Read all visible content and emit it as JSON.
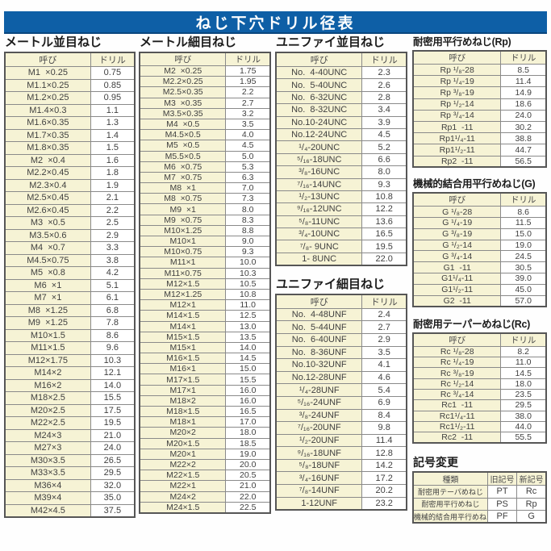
{
  "title": "ねじ下穴ドリル径表",
  "colors": {
    "header_blue": "#0e5fa6",
    "cell_cream": "#f6f3d5",
    "border_gray": "#8a8a8a",
    "text_gray": "#3f3f3f"
  },
  "tables": {
    "metric_coarse": {
      "title": "メートル並目ねじ",
      "headers": [
        "呼び",
        "ドリル"
      ],
      "rows": [
        [
          "M1  ×0.25",
          "0.75"
        ],
        [
          "M1.1×0.25",
          "0.85"
        ],
        [
          "M1.2×0.25",
          "0.95"
        ],
        [
          "M1.4×0.3",
          "1.1"
        ],
        [
          "M1.6×0.35",
          "1.3"
        ],
        [
          "M1.7×0.35",
          "1.4"
        ],
        [
          "M1.8×0.35",
          "1.5"
        ],
        [
          "M2  ×0.4",
          "1.6"
        ],
        [
          "M2.2×0.45",
          "1.8"
        ],
        [
          "M2.3×0.4",
          "1.9"
        ],
        [
          "M2.5×0.45",
          "2.1"
        ],
        [
          "M2.6×0.45",
          "2.2"
        ],
        [
          "M3  ×0.5",
          "2.5"
        ],
        [
          "M3.5×0.6",
          "2.9"
        ],
        [
          "M4  ×0.7",
          "3.3"
        ],
        [
          "M4.5×0.75",
          "3.8"
        ],
        [
          "M5  ×0.8",
          "4.2"
        ],
        [
          "M6  ×1",
          "5.1"
        ],
        [
          "M7  ×1",
          "6.1"
        ],
        [
          "M8  ×1.25",
          "6.8"
        ],
        [
          "M9  ×1.25",
          "7.8"
        ],
        [
          "M10×1.5",
          "8.6"
        ],
        [
          "M11×1.5",
          "9.6"
        ],
        [
          "M12×1.75",
          "10.3"
        ],
        [
          "M14×2",
          "12.1"
        ],
        [
          "M16×2",
          "14.0"
        ],
        [
          "M18×2.5",
          "15.5"
        ],
        [
          "M20×2.5",
          "17.5"
        ],
        [
          "M22×2.5",
          "19.5"
        ],
        [
          "M24×3",
          "21.0"
        ],
        [
          "M27×3",
          "24.0"
        ],
        [
          "M30×3.5",
          "26.5"
        ],
        [
          "M33×3.5",
          "29.5"
        ],
        [
          "M36×4",
          "32.0"
        ],
        [
          "M39×4",
          "35.0"
        ],
        [
          "M42×4.5",
          "37.5"
        ]
      ]
    },
    "metric_fine": {
      "title": "メートル細目ねじ",
      "headers": [
        "呼び",
        "ドリル"
      ],
      "rows": [
        [
          "M2  ×0.25",
          "1.75"
        ],
        [
          "M2.2×0.25",
          "1.95"
        ],
        [
          "M2.5×0.35",
          "2.2"
        ],
        [
          "M3  ×0.35",
          "2.7"
        ],
        [
          "M3.5×0.35",
          "3.2"
        ],
        [
          "M4  ×0.5",
          "3.5"
        ],
        [
          "M4.5×0.5",
          "4.0"
        ],
        [
          "M5  ×0.5",
          "4.5"
        ],
        [
          "M5.5×0.5",
          "5.0"
        ],
        [
          "M6  ×0.75",
          "5.3"
        ],
        [
          "M7  ×0.75",
          "6.3"
        ],
        [
          "M8  ×1",
          "7.0"
        ],
        [
          "M8  ×0.75",
          "7.3"
        ],
        [
          "M9  ×1",
          "8.0"
        ],
        [
          "M9  ×0.75",
          "8.3"
        ],
        [
          "M10×1.25",
          "8.8"
        ],
        [
          "M10×1",
          "9.0"
        ],
        [
          "M10×0.75",
          "9.3"
        ],
        [
          "M11×1",
          "10.0"
        ],
        [
          "M11×0.75",
          "10.3"
        ],
        [
          "M12×1.5",
          "10.5"
        ],
        [
          "M12×1.25",
          "10.8"
        ],
        [
          "M12×1",
          "11.0"
        ],
        [
          "M14×1.5",
          "12.5"
        ],
        [
          "M14×1",
          "13.0"
        ],
        [
          "M15×1.5",
          "13.5"
        ],
        [
          "M15×1",
          "14.0"
        ],
        [
          "M16×1.5",
          "14.5"
        ],
        [
          "M16×1",
          "15.0"
        ],
        [
          "M17×1.5",
          "15.5"
        ],
        [
          "M17×1",
          "16.0"
        ],
        [
          "M18×2",
          "16.0"
        ],
        [
          "M18×1.5",
          "16.5"
        ],
        [
          "M18×1",
          "17.0"
        ],
        [
          "M20×2",
          "18.0"
        ],
        [
          "M20×1.5",
          "18.5"
        ],
        [
          "M20×1",
          "19.0"
        ],
        [
          "M22×2",
          "20.0"
        ],
        [
          "M22×1.5",
          "20.5"
        ],
        [
          "M22×1",
          "21.0"
        ],
        [
          "M24×2",
          "22.0"
        ],
        [
          "M24×1.5",
          "22.5"
        ]
      ]
    },
    "unified_coarse": {
      "title": "ユニファイ並目ねじ",
      "headers": [
        "呼び",
        "ドリル"
      ],
      "rows": [
        [
          "No.  4-40UNC",
          "2.3"
        ],
        [
          "No.  5-40UNC",
          "2.6"
        ],
        [
          "No.  6-32UNC",
          "2.8"
        ],
        [
          "No.  8-32UNC",
          "3.4"
        ],
        [
          "No.10-24UNC",
          "3.9"
        ],
        [
          "No.12-24UNC",
          "4.5"
        ],
        [
          "¹/₄-20UNC",
          "5.2"
        ],
        [
          "⁵/₁₆-18UNC",
          "6.6"
        ],
        [
          "³/₈-16UNC",
          "8.0"
        ],
        [
          "⁷/₁₆-14UNC",
          "9.3"
        ],
        [
          "¹/₂-13UNC",
          "10.8"
        ],
        [
          "⁹/₁₆-12UNC",
          "12.2"
        ],
        [
          "⁵/₈-11UNC",
          "13.6"
        ],
        [
          "³/₄-10UNC",
          "16.5"
        ],
        [
          "⁷/₈- 9UNC",
          "19.5"
        ],
        [
          "1- 8UNC",
          "22.0"
        ]
      ]
    },
    "unified_fine": {
      "title": "ユニファイ細目ねじ",
      "headers": [
        "呼び",
        "ドリル"
      ],
      "rows": [
        [
          "No.  4-48UNF",
          "2.4"
        ],
        [
          "No.  5-44UNF",
          "2.7"
        ],
        [
          "No.  6-40UNF",
          "2.9"
        ],
        [
          "No.  8-36UNF",
          "3.5"
        ],
        [
          "No.10-32UNF",
          "4.1"
        ],
        [
          "No.12-28UNF",
          "4.6"
        ],
        [
          "¹/₄-28UNF",
          "5.4"
        ],
        [
          "⁵/₁₆-24UNF",
          "6.9"
        ],
        [
          "³/₈-24UNF",
          "8.4"
        ],
        [
          "⁷/₁₆-20UNF",
          "9.8"
        ],
        [
          "¹/₂-20UNF",
          "11.4"
        ],
        [
          "⁹/₁₆-18UNF",
          "12.8"
        ],
        [
          "⁵/₈-18UNF",
          "14.2"
        ],
        [
          "³/₄-16UNF",
          "17.2"
        ],
        [
          "⁷/₈-14UNF",
          "20.2"
        ],
        [
          "1-12UNF",
          "23.2"
        ]
      ]
    },
    "rp": {
      "title": "耐密用平行めねじ(Rp)",
      "headers": [
        "呼び",
        "ドリル"
      ],
      "rows": [
        [
          "Rp ¹/₈-28",
          "8.5"
        ],
        [
          "Rp ¹/₄-19",
          "11.4"
        ],
        [
          "Rp ³/₈-19",
          "14.9"
        ],
        [
          "Rp ¹/₂-14",
          "18.6"
        ],
        [
          "Rp ³/₄-14",
          "24.0"
        ],
        [
          "Rp1  -11",
          "30.2"
        ],
        [
          "Rp1¹/₄-11",
          "38.8"
        ],
        [
          "Rp1¹/₂-11",
          "44.7"
        ],
        [
          "Rp2  -11",
          "56.5"
        ]
      ]
    },
    "g": {
      "title": "機械的結合用平行めねじ(G)",
      "headers": [
        "呼び",
        "ドリル"
      ],
      "rows": [
        [
          "G ¹/₈-28",
          "8.6"
        ],
        [
          "G ¹/₄-19",
          "11.5"
        ],
        [
          "G ³/₈-19",
          "15.0"
        ],
        [
          "G ¹/₂-14",
          "19.0"
        ],
        [
          "G ³/₄-14",
          "24.5"
        ],
        [
          "G1  -11",
          "30.5"
        ],
        [
          "G1¹/₄-11",
          "39.0"
        ],
        [
          "G1¹/₂-11",
          "45.0"
        ],
        [
          "G2  -11",
          "57.0"
        ]
      ]
    },
    "rc": {
      "title": "耐密用テーパーめねじ(Rc)",
      "headers": [
        "呼び",
        "ドリル"
      ],
      "rows": [
        [
          "Rc ¹/₈-28",
          "8.2"
        ],
        [
          "Rc ¹/₄-19",
          "11.0"
        ],
        [
          "Rc ³/₈-19",
          "14.5"
        ],
        [
          "Rc ¹/₂-14",
          "18.0"
        ],
        [
          "Rc ³/₄-14",
          "23.5"
        ],
        [
          "Rc1  -11",
          "29.5"
        ],
        [
          "Rc1¹/₄-11",
          "38.0"
        ],
        [
          "Rc1¹/₂-11",
          "44.0"
        ],
        [
          "Rc2  -11",
          "55.5"
        ]
      ]
    },
    "symbol_change": {
      "title": "記号変更",
      "headers": [
        "種類",
        "旧記号",
        "新記号"
      ],
      "rows": [
        [
          "耐密用テーパめねじ",
          "PT",
          "Rc"
        ],
        [
          "耐密用平行めねじ",
          "PS",
          "Rp"
        ],
        [
          "機械的結合用平行めねじ",
          "PF",
          "G"
        ]
      ]
    }
  }
}
